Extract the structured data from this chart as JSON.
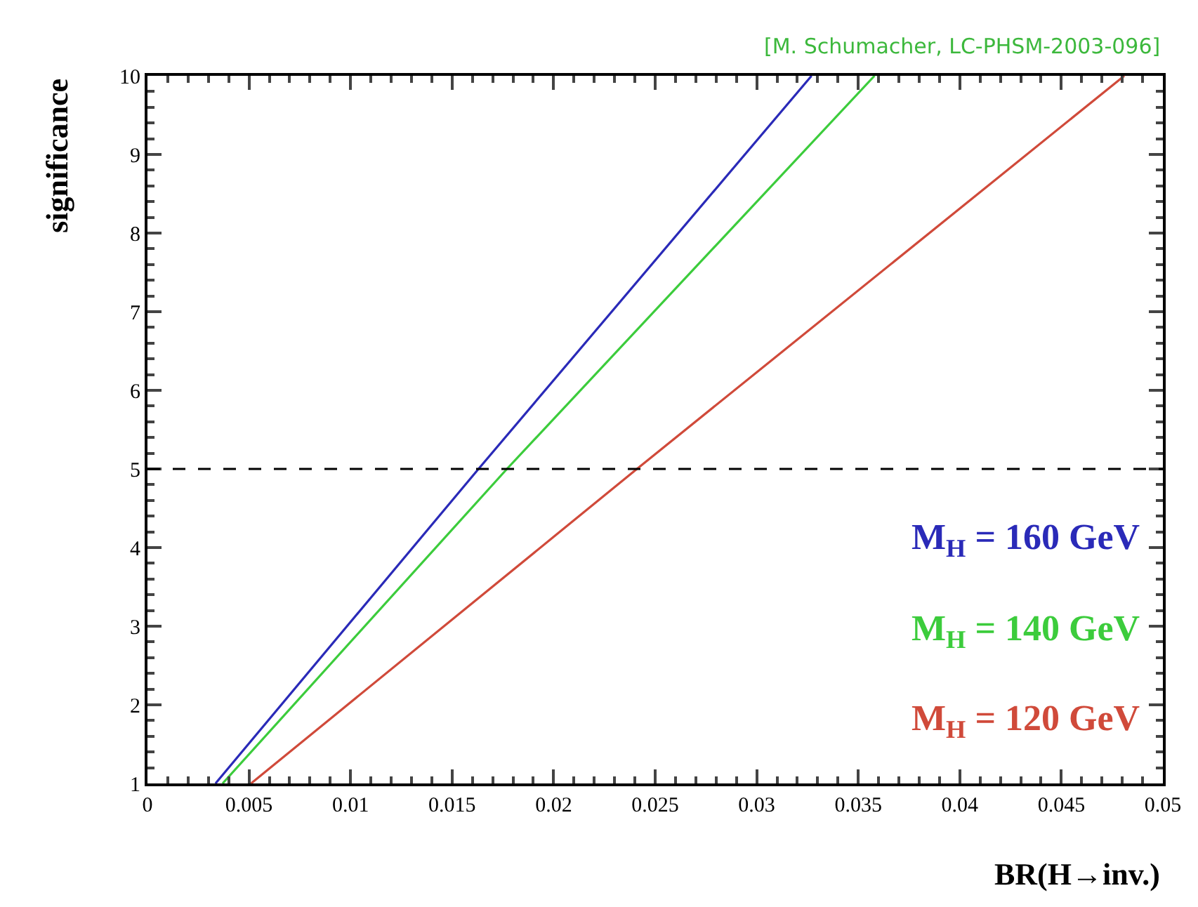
{
  "chart_data": {
    "type": "line",
    "xlabel": "BR(H→inv.)",
    "ylabel": "significance",
    "xlim": [
      0,
      0.05
    ],
    "xticks": [
      0,
      0.005,
      0.01,
      0.015,
      0.02,
      0.025,
      0.03,
      0.035,
      0.04,
      0.045,
      0.05
    ],
    "ylim": [
      1,
      10
    ],
    "yticks": [
      1,
      2,
      3,
      4,
      5,
      6,
      7,
      8,
      9,
      10
    ],
    "series": [
      {
        "name": "M$_{H}$ = 160 GeV",
        "color": "#2a2ab8",
        "x": [
          0.00335,
          0.0163,
          0.0327
        ],
        "values": [
          1,
          5,
          10
        ]
      },
      {
        "name": "M$_{H}$ = 140 GeV",
        "color": "#3ccc3c",
        "x": [
          0.0037,
          0.0177,
          0.0358
        ],
        "values": [
          1,
          5,
          10
        ]
      },
      {
        "name": "M$_{H}$ = 120 GeV",
        "color": "#d04a3a",
        "x": [
          0.0051,
          0.0241,
          0.0481
        ],
        "values": [
          1,
          5,
          10
        ]
      }
    ],
    "ref_lines": [
      {
        "axis": "y",
        "value": 5,
        "color": "#000000",
        "line_style": "dashed"
      }
    ],
    "annotations": [
      "[M. Schumacher, LC-PHSM-2003-096]"
    ],
    "legend": false,
    "marker": "none",
    "line_style": "solid"
  }
}
